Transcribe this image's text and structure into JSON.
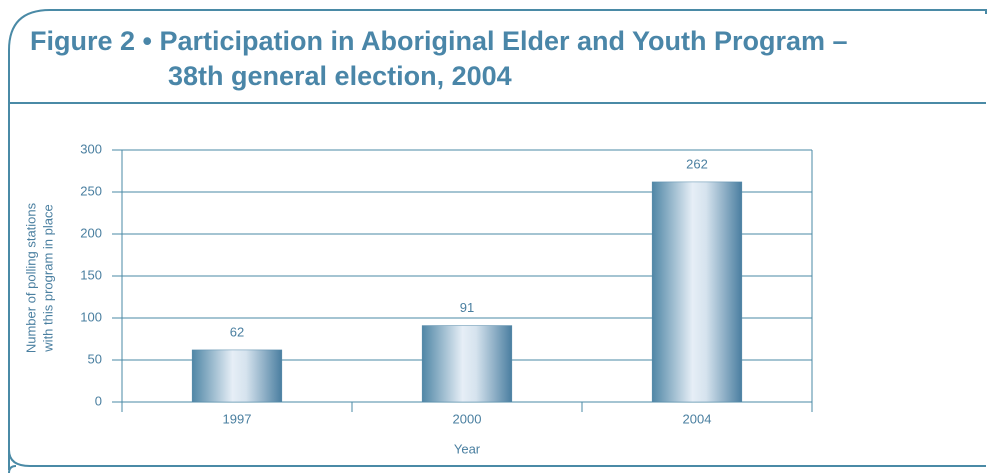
{
  "chart_data": {
    "type": "bar",
    "title": [
      "Figure 2 • Participation in Aboriginal Elder and Youth Program –",
      "38th general election, 2004"
    ],
    "xlabel": "Year",
    "ylabel": [
      "Number of polling stations",
      "with this program in place"
    ],
    "categories": [
      "1997",
      "2000",
      "2004"
    ],
    "values": [
      62,
      91,
      262
    ],
    "color": "#4f86a6",
    "ylim": [
      0,
      300
    ],
    "yticks": [
      0,
      50,
      100,
      150,
      200,
      250,
      300
    ],
    "grid": true
  }
}
